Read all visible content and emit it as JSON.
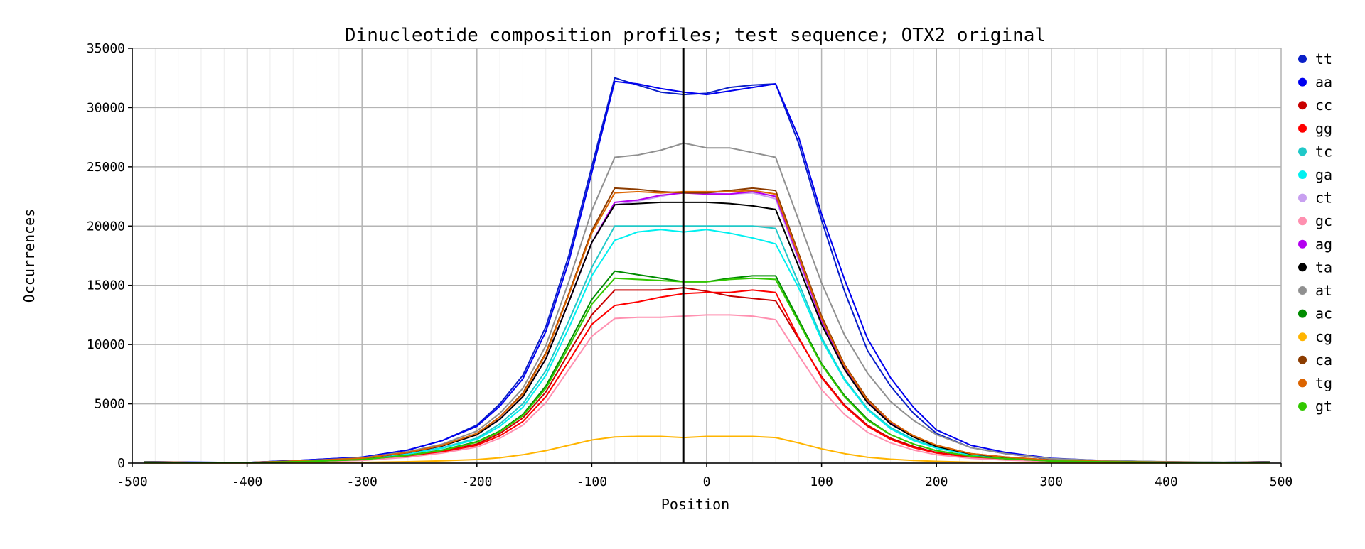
{
  "chart_data": {
    "type": "line",
    "title": "Dinucleotide composition profiles; test sequence; OTX2_original",
    "xlabel": "Position",
    "ylabel": "Occurrences",
    "xlim": [
      -500,
      500
    ],
    "ylim": [
      0,
      35000
    ],
    "xticks": [
      -500,
      -400,
      -300,
      -200,
      -100,
      0,
      100,
      200,
      300,
      400,
      500
    ],
    "yticks": [
      0,
      5000,
      10000,
      15000,
      20000,
      25000,
      30000,
      35000
    ],
    "grid": true,
    "legend_position": "right",
    "reference_line_x": -20,
    "x": [
      -490,
      -450,
      -400,
      -350,
      -300,
      -260,
      -230,
      -200,
      -180,
      -160,
      -140,
      -120,
      -100,
      -80,
      -60,
      -40,
      -20,
      0,
      20,
      40,
      60,
      80,
      100,
      120,
      140,
      160,
      180,
      200,
      230,
      260,
      300,
      350,
      400,
      450,
      490
    ],
    "series": [
      {
        "name": "tt",
        "color": "#0a1fc8",
        "values": [
          120,
          70,
          50,
          250,
          500,
          1100,
          1900,
          3200,
          5000,
          7400,
          11500,
          17500,
          25000,
          32500,
          31900,
          31300,
          31100,
          31200,
          31700,
          31900,
          32000,
          27000,
          20500,
          14500,
          9500,
          6500,
          4200,
          2500,
          1300,
          800,
          350,
          200,
          100,
          60,
          120
        ]
      },
      {
        "name": "aa",
        "color": "#0000f0",
        "values": [
          120,
          70,
          50,
          250,
          500,
          1100,
          1900,
          3100,
          4800,
          7100,
          11100,
          17000,
          24500,
          32200,
          32000,
          31600,
          31300,
          31100,
          31400,
          31700,
          32000,
          27500,
          21000,
          15500,
          10500,
          7200,
          4700,
          2800,
          1500,
          900,
          400,
          200,
          100,
          60,
          120
        ]
      },
      {
        "name": "cc",
        "color": "#c80000",
        "values": [
          60,
          40,
          30,
          120,
          250,
          600,
          1000,
          1600,
          2500,
          3800,
          6000,
          9300,
          12500,
          14600,
          14600,
          14600,
          14800,
          14500,
          14100,
          13900,
          13700,
          10500,
          7300,
          4900,
          3200,
          2100,
          1400,
          900,
          500,
          300,
          150,
          80,
          50,
          40,
          60
        ]
      },
      {
        "name": "gg",
        "color": "#ff0000",
        "values": [
          60,
          40,
          30,
          120,
          250,
          550,
          950,
          1500,
          2300,
          3500,
          5600,
          8600,
          11700,
          13300,
          13600,
          14000,
          14300,
          14400,
          14400,
          14600,
          14400,
          10600,
          7200,
          4800,
          3100,
          2000,
          1300,
          850,
          480,
          300,
          150,
          80,
          50,
          40,
          60
        ]
      },
      {
        "name": "tc",
        "color": "#20c8c8",
        "values": [
          80,
          50,
          40,
          180,
          350,
          800,
          1300,
          2100,
          3300,
          5000,
          7800,
          12000,
          16500,
          20000,
          20000,
          20000,
          20000,
          20000,
          20000,
          20000,
          19800,
          15200,
          10600,
          7100,
          4600,
          3000,
          2000,
          1300,
          700,
          450,
          220,
          120,
          70,
          50,
          80
        ]
      },
      {
        "name": "ga",
        "color": "#00f0f0",
        "values": [
          80,
          50,
          40,
          170,
          340,
          780,
          1250,
          2000,
          3100,
          4700,
          7400,
          11400,
          15800,
          18800,
          19500,
          19700,
          19500,
          19700,
          19400,
          19000,
          18500,
          14800,
          10400,
          7000,
          4500,
          2900,
          1900,
          1250,
          680,
          430,
          210,
          110,
          70,
          50,
          80
        ]
      },
      {
        "name": "ct",
        "color": "#c8a0f0",
        "values": [
          90,
          60,
          40,
          190,
          390,
          880,
          1450,
          2400,
          3700,
          5600,
          8800,
          13600,
          18600,
          21800,
          22100,
          22500,
          22900,
          22800,
          22700,
          22800,
          22300,
          17100,
          11900,
          8000,
          5200,
          3400,
          2200,
          1450,
          780,
          500,
          240,
          130,
          80,
          50,
          90
        ]
      },
      {
        "name": "gc",
        "color": "#ff90b0",
        "values": [
          50,
          30,
          20,
          100,
          220,
          500,
          850,
          1350,
          2100,
          3200,
          5100,
          7900,
          10700,
          12200,
          12300,
          12300,
          12400,
          12500,
          12500,
          12400,
          12100,
          9100,
          6200,
          4100,
          2600,
          1700,
          1100,
          700,
          400,
          250,
          130,
          70,
          40,
          30,
          50
        ]
      },
      {
        "name": "ag",
        "color": "#b400f0",
        "values": [
          90,
          60,
          40,
          190,
          390,
          880,
          1450,
          2400,
          3700,
          5600,
          8800,
          13600,
          18600,
          22000,
          22200,
          22600,
          22800,
          22700,
          22700,
          22900,
          22500,
          17300,
          12000,
          8100,
          5200,
          3400,
          2200,
          1450,
          780,
          500,
          240,
          130,
          80,
          50,
          90
        ]
      },
      {
        "name": "ta",
        "color": "#000000",
        "values": [
          90,
          60,
          40,
          190,
          390,
          880,
          1450,
          2400,
          3700,
          5600,
          8800,
          13600,
          18600,
          21800,
          21900,
          22000,
          22000,
          22000,
          21900,
          21700,
          21400,
          16600,
          11700,
          7900,
          5100,
          3300,
          2200,
          1400,
          760,
          480,
          230,
          120,
          80,
          50,
          90
        ]
      },
      {
        "name": "at",
        "color": "#909090",
        "values": [
          100,
          60,
          45,
          210,
          430,
          970,
          1600,
          2700,
          4200,
          6300,
          9900,
          15300,
          21300,
          25800,
          26000,
          26400,
          27000,
          26600,
          26600,
          26200,
          25800,
          20500,
          15200,
          10800,
          7600,
          5200,
          3600,
          2400,
          1300,
          800,
          380,
          200,
          120,
          70,
          100
        ]
      },
      {
        "name": "ac",
        "color": "#008c00",
        "values": [
          70,
          45,
          30,
          140,
          300,
          660,
          1100,
          1800,
          2700,
          4100,
          6500,
          10100,
          13800,
          16200,
          15900,
          15600,
          15300,
          15300,
          15600,
          15800,
          15800,
          12100,
          8400,
          5700,
          3700,
          2400,
          1600,
          1050,
          580,
          370,
          180,
          100,
          60,
          40,
          70
        ]
      },
      {
        "name": "cg",
        "color": "#ffb400",
        "values": [
          20,
          15,
          10,
          30,
          60,
          120,
          200,
          300,
          450,
          700,
          1050,
          1500,
          1950,
          2200,
          2250,
          2250,
          2150,
          2250,
          2250,
          2250,
          2150,
          1700,
          1200,
          800,
          500,
          330,
          220,
          150,
          80,
          50,
          30,
          20,
          15,
          10,
          20
        ]
      },
      {
        "name": "ca",
        "color": "#8c3c00",
        "values": [
          90,
          60,
          40,
          200,
          400,
          900,
          1500,
          2500,
          3900,
          5900,
          9300,
          14300,
          19600,
          23200,
          23100,
          22900,
          22800,
          22800,
          23000,
          23200,
          23000,
          17700,
          12400,
          8300,
          5400,
          3500,
          2300,
          1500,
          800,
          510,
          250,
          130,
          80,
          50,
          90
        ]
      },
      {
        "name": "tg",
        "color": "#dc6400",
        "values": [
          90,
          60,
          40,
          200,
          400,
          900,
          1500,
          2500,
          3900,
          5800,
          9200,
          14200,
          19400,
          22800,
          22900,
          22800,
          22900,
          22900,
          22900,
          23000,
          22700,
          17500,
          12200,
          8200,
          5300,
          3500,
          2300,
          1500,
          800,
          510,
          250,
          130,
          80,
          50,
          90
        ]
      },
      {
        "name": "gt",
        "color": "#32c800",
        "values": [
          70,
          45,
          30,
          140,
          300,
          650,
          1080,
          1750,
          2650,
          4000,
          6300,
          9800,
          13400,
          15600,
          15500,
          15400,
          15300,
          15300,
          15500,
          15600,
          15500,
          11900,
          8300,
          5600,
          3600,
          2400,
          1600,
          1050,
          580,
          370,
          180,
          100,
          60,
          40,
          70
        ]
      }
    ]
  }
}
